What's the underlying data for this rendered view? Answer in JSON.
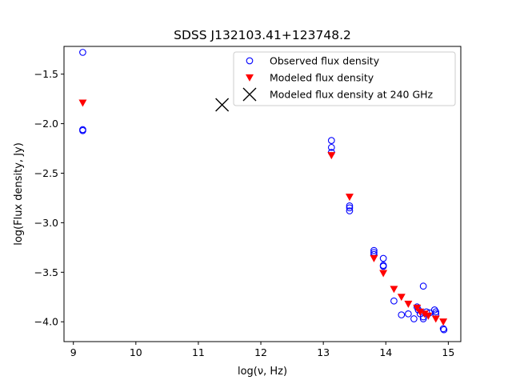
{
  "chart_data": {
    "type": "scatter",
    "title": "SDSS J132103.41+123748.2",
    "xlabel": "log(ν, Hz)",
    "ylabel": "log(Flux density, Jy)",
    "xlim": [
      8.85,
      15.2
    ],
    "ylim": [
      -4.2,
      -1.22
    ],
    "xticks": [
      9,
      10,
      11,
      12,
      13,
      14,
      15
    ],
    "xtick_labels": [
      "9",
      "10",
      "11",
      "12",
      "13",
      "14",
      "15"
    ],
    "yticks": [
      -4.0,
      -3.5,
      -3.0,
      -2.5,
      -2.0,
      -1.5
    ],
    "ytick_labels": [
      "−4.0",
      "−3.5",
      "−3.0",
      "−2.5",
      "−2.0",
      "−1.5"
    ],
    "grid": false,
    "legend_position": "top-right",
    "series": [
      {
        "name": "Observed flux density",
        "marker": "open-circle",
        "color": "#0000ff",
        "points": [
          [
            9.15,
            -1.28
          ],
          [
            9.15,
            -2.06
          ],
          [
            9.15,
            -2.07
          ],
          [
            13.13,
            -2.17
          ],
          [
            13.13,
            -2.24
          ],
          [
            13.13,
            -2.29
          ],
          [
            13.42,
            -2.83
          ],
          [
            13.42,
            -2.85
          ],
          [
            13.42,
            -2.88
          ],
          [
            13.81,
            -3.28
          ],
          [
            13.81,
            -3.3
          ],
          [
            13.81,
            -3.32
          ],
          [
            13.96,
            -3.36
          ],
          [
            13.96,
            -3.43
          ],
          [
            13.96,
            -3.44
          ],
          [
            14.13,
            -3.79
          ],
          [
            14.25,
            -3.93
          ],
          [
            14.36,
            -3.92
          ],
          [
            14.45,
            -3.97
          ],
          [
            14.5,
            -3.85
          ],
          [
            14.52,
            -3.88
          ],
          [
            14.55,
            -3.92
          ],
          [
            14.6,
            -3.95
          ],
          [
            14.6,
            -3.97
          ],
          [
            14.6,
            -3.64
          ],
          [
            14.65,
            -3.9
          ],
          [
            14.7,
            -3.91
          ],
          [
            14.78,
            -3.88
          ],
          [
            14.8,
            -3.9
          ],
          [
            14.8,
            -3.92
          ],
          [
            14.92,
            -4.07
          ],
          [
            14.93,
            -4.08
          ]
        ]
      },
      {
        "name": "Modeled flux density",
        "marker": "triangle-down",
        "color": "#ff0000",
        "points": [
          [
            9.15,
            -1.79
          ],
          [
            13.13,
            -2.32
          ],
          [
            13.42,
            -2.74
          ],
          [
            13.81,
            -3.36
          ],
          [
            13.96,
            -3.51
          ],
          [
            14.13,
            -3.67
          ],
          [
            14.25,
            -3.75
          ],
          [
            14.36,
            -3.82
          ],
          [
            14.5,
            -3.86
          ],
          [
            14.55,
            -3.9
          ],
          [
            14.62,
            -3.92
          ],
          [
            14.68,
            -3.94
          ],
          [
            14.8,
            -3.97
          ],
          [
            14.92,
            -4.0
          ]
        ]
      },
      {
        "name": "Modeled flux density at 240 GHz",
        "marker": "x",
        "color": "#000000",
        "points": [
          [
            11.38,
            -1.81
          ]
        ]
      }
    ]
  }
}
